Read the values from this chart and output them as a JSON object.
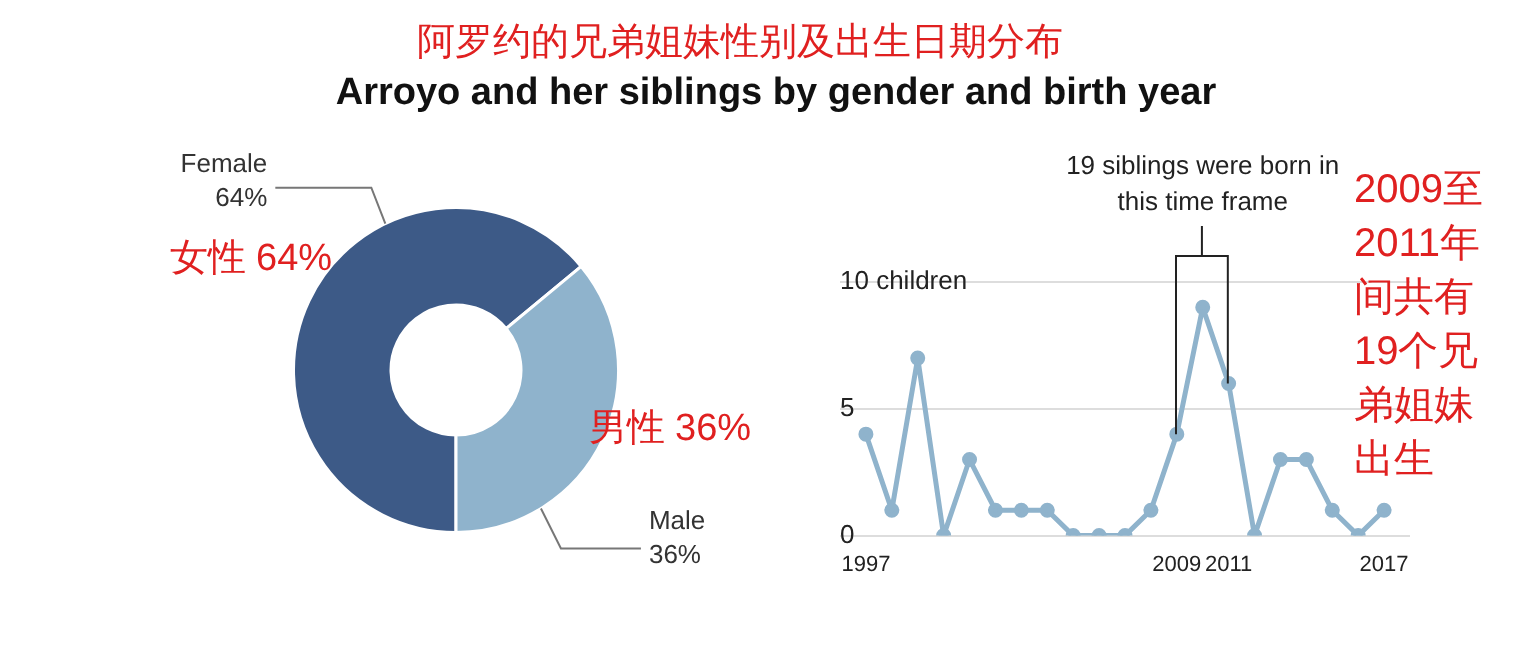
{
  "chart_data": [
    {
      "type": "donut",
      "title": "Arroyo and her siblings by gender and birth year",
      "subtitle": "阿罗约的兄弟姐妹性别及出生日期分布",
      "categories": [
        "Female",
        "Male"
      ],
      "values": [
        64,
        36
      ],
      "colors": [
        "#3d5a87",
        "#8fb3cc"
      ],
      "value_labels": [
        "64%",
        "36%"
      ],
      "annotations": [
        "女性 64%",
        "男性 36%"
      ],
      "legend": false
    },
    {
      "type": "line",
      "x": [
        1997,
        1998,
        1999,
        2000,
        2001,
        2002,
        2003,
        2004,
        2005,
        2006,
        2007,
        2008,
        2009,
        2010,
        2011,
        2012,
        2013,
        2014,
        2015,
        2016,
        2017
      ],
      "series": [
        {
          "color": "#8fb3cc",
          "values": [
            4,
            1,
            7,
            0,
            3,
            1,
            1,
            1,
            0,
            0,
            0,
            1,
            4,
            9,
            6,
            0,
            3,
            3,
            1,
            0,
            1
          ]
        }
      ],
      "xlim": [
        1996,
        2018
      ],
      "xticks": [
        1997,
        2009,
        2011,
        2017
      ],
      "ylim": [
        0,
        10
      ],
      "yticks": [
        0,
        5,
        {
          "value": 10,
          "label": "10 children"
        }
      ],
      "grid": "y",
      "marker": "circle",
      "line_style": "solid",
      "legend": false,
      "annotations": [
        "19 siblings were born in this time frame",
        "2009至2011年间共有19个兄弟姐妹出生"
      ]
    }
  ]
}
